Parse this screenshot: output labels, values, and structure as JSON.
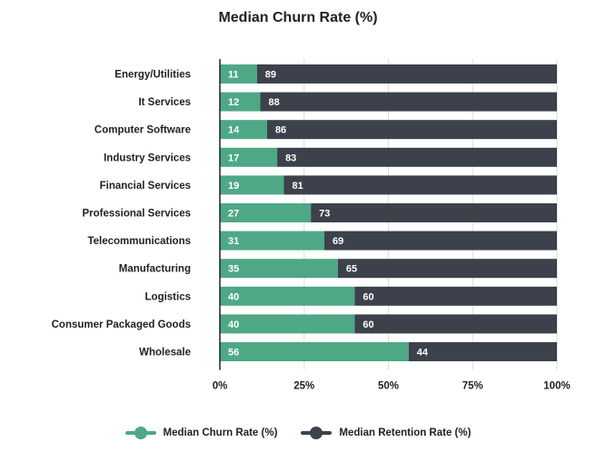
{
  "chart_data": {
    "type": "bar",
    "orientation": "horizontal",
    "stacked": true,
    "title": "Median Churn Rate (%)",
    "categories": [
      "Energy/Utilities",
      "It Services",
      "Computer Software",
      "Industry Services",
      "Financial Services",
      "Professional Services",
      "Telecommunications",
      "Manufacturing",
      "Logistics",
      "Consumer Packaged Goods",
      "Wholesale"
    ],
    "series": [
      {
        "name": "Median Churn Rate (%)",
        "color": "#4ea886",
        "values": [
          11,
          12,
          14,
          17,
          19,
          27,
          31,
          35,
          40,
          40,
          56
        ]
      },
      {
        "name": "Median Retention Rate (%)",
        "color": "#3c414b",
        "values": [
          89,
          88,
          86,
          83,
          81,
          73,
          69,
          65,
          60,
          60,
          44
        ]
      }
    ],
    "xlim": [
      0,
      100
    ],
    "xticks": [
      "0%",
      "25%",
      "50%",
      "75%",
      "100%"
    ],
    "grid": true,
    "legend_position": "bottom"
  }
}
